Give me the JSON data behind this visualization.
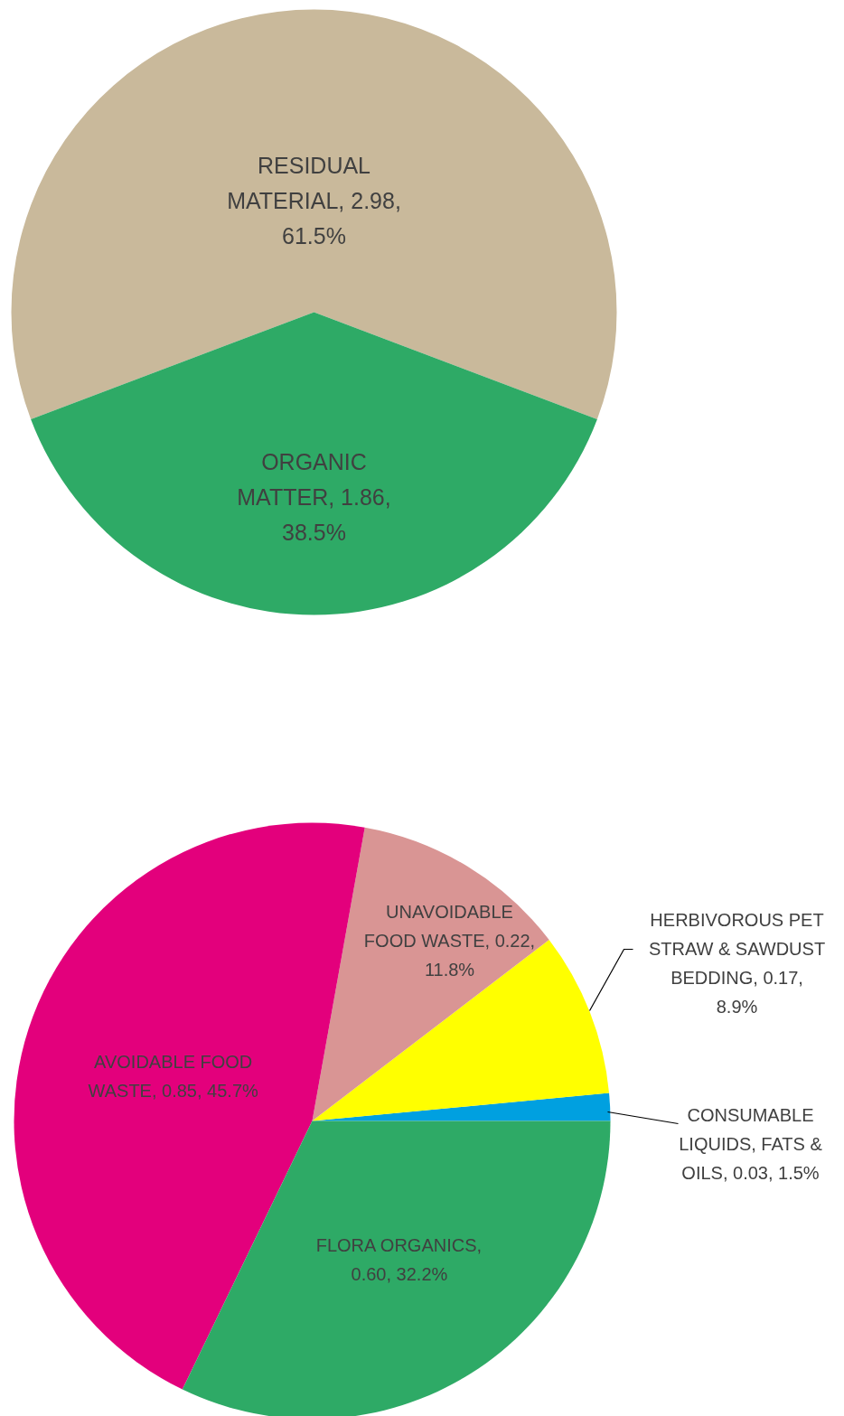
{
  "chart_data": [
    {
      "type": "pie",
      "categories": [
        "RESIDUAL MATERIAL, 2.98, 61.5%",
        "ORGANIC MATTER, 1.86, 38.5%"
      ],
      "values": [
        61.5,
        38.5
      ],
      "colors": [
        "#c9b99b",
        "#2eaa66"
      ]
    },
    {
      "type": "pie",
      "categories": [
        "CONSUMABLE LIQUIDS, FATS & OILS, 0.03, 1.5%",
        "HERBIVOROUS PET STRAW & SAWDUST BEDDING, 0.17, 8.9%",
        "UNAVOIDABLE FOOD WASTE, 0.22, 11.8%",
        "AVOIDABLE FOOD WASTE, 0.85, 45.7%",
        "FLORA ORGANICS, 0.60, 32.2%"
      ],
      "values": [
        1.5,
        8.9,
        11.8,
        45.7,
        32.2
      ],
      "colors": [
        "#00a0e0",
        "#ffff00",
        "#d99594",
        "#e3007c",
        "#2eaa66"
      ]
    }
  ]
}
